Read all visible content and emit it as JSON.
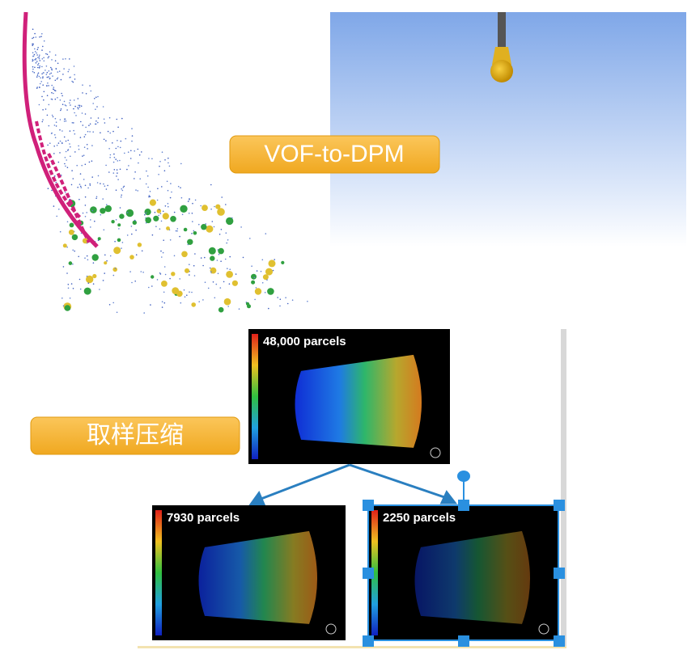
{
  "labels": {
    "method": "VOF-to-DPM",
    "sampling": "取样压缩"
  },
  "panels": [
    {
      "label": "48,000 parcels"
    },
    {
      "label": "7930 parcels"
    },
    {
      "label": "2250 parcels"
    }
  ]
}
